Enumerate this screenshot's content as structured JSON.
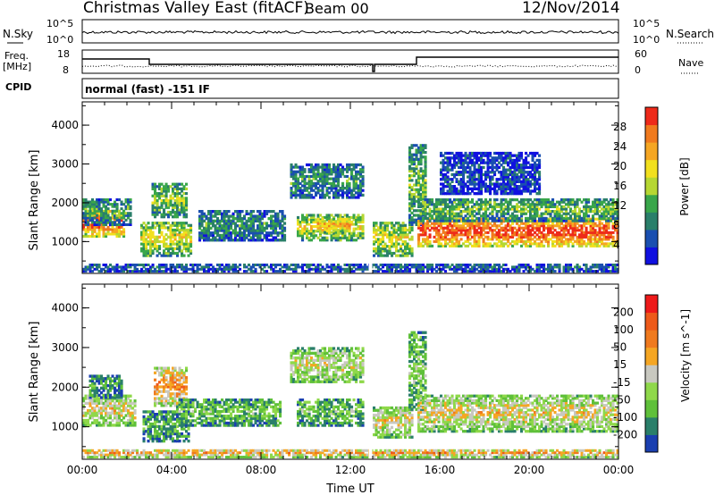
{
  "header": {
    "station": "Christmas Valley East (fitACF)",
    "beam": "Beam 00",
    "date": "12/Nov/2014"
  },
  "top_panels": {
    "nsky_label": "N.Sky",
    "nsky_ticks": [
      "10^5",
      "10^0"
    ],
    "nsearch_label": "N.Search",
    "nsearch_ticks": [
      "10^5",
      "10^0"
    ],
    "freq_label": "Freq.",
    "freq_unit": "[MHz]",
    "freq_ticks": [
      "18",
      "8"
    ],
    "nave_label": "Nave",
    "nave_ticks": [
      "60",
      "0"
    ],
    "cpid_label": "CPID",
    "cpid_text": "normal (fast) -151 IF"
  },
  "chart_data": [
    {
      "type": "heatmap",
      "quantity": "Power",
      "ylabel": "Slant Range [km]",
      "xlabel": "Time UT",
      "xticks": [
        "00:00",
        "04:00",
        "08:00",
        "12:00",
        "16:00",
        "20:00",
        "00:00"
      ],
      "yticks": [
        "1000",
        "2000",
        "3000",
        "4000"
      ],
      "xlim": [
        0,
        24
      ],
      "ylim": [
        180,
        4600
      ],
      "colorbar": {
        "label": "Power [dB]",
        "ticks": [
          "28",
          "24",
          "20",
          "16",
          "12",
          "8",
          "4"
        ],
        "range": [
          0,
          32
        ],
        "colors": [
          "#1010e0",
          "#1a4fb0",
          "#2a7f6a",
          "#39a64a",
          "#b6d732",
          "#f2e01e",
          "#f5a623",
          "#f07a1e",
          "#ee2a1a"
        ]
      },
      "blobs": [
        {
          "t0": 0.0,
          "t1": 1.9,
          "r0": 1100,
          "r1": 1800,
          "level": 0.85
        },
        {
          "t0": 0.0,
          "t1": 2.2,
          "r0": 1400,
          "r1": 2100,
          "level": 0.35
        },
        {
          "t0": 2.6,
          "t1": 4.9,
          "r0": 600,
          "r1": 1500,
          "level": 0.55
        },
        {
          "t0": 3.1,
          "t1": 4.7,
          "r0": 1600,
          "r1": 2500,
          "level": 0.45
        },
        {
          "t0": 5.2,
          "t1": 9.1,
          "r0": 1000,
          "r1": 1800,
          "level": 0.3
        },
        {
          "t0": 9.3,
          "t1": 12.6,
          "r0": 2100,
          "r1": 3000,
          "level": 0.3
        },
        {
          "t0": 9.6,
          "t1": 12.6,
          "r0": 1000,
          "r1": 1700,
          "level": 0.55
        },
        {
          "t0": 10.5,
          "t1": 12.0,
          "r0": 1200,
          "r1": 1600,
          "level": 0.7
        },
        {
          "t0": 13.0,
          "t1": 14.8,
          "r0": 600,
          "r1": 1500,
          "level": 0.55
        },
        {
          "t0": 14.6,
          "t1": 15.4,
          "r0": 1400,
          "r1": 3500,
          "level": 0.4
        },
        {
          "t0": 15.0,
          "t1": 24.0,
          "r0": 850,
          "r1": 1600,
          "level": 0.9
        },
        {
          "t0": 15.0,
          "t1": 24.0,
          "r0": 1500,
          "r1": 2100,
          "level": 0.4
        },
        {
          "t0": 16.0,
          "t1": 20.5,
          "r0": 2200,
          "r1": 3300,
          "level": 0.15
        },
        {
          "t0": 0.0,
          "t1": 24.0,
          "r0": 200,
          "r1": 420,
          "level": 0.2
        }
      ]
    },
    {
      "type": "heatmap",
      "quantity": "Velocity",
      "ylabel": "Slant Range [km]",
      "xlabel": "Time UT",
      "xticks": [
        "00:00",
        "04:00",
        "08:00",
        "12:00",
        "16:00",
        "20:00",
        "00:00"
      ],
      "yticks": [
        "1000",
        "2000",
        "3000",
        "4000"
      ],
      "xlim": [
        0,
        24
      ],
      "ylim": [
        180,
        4600
      ],
      "colorbar": {
        "label": "Velocity [m s^-1]",
        "ticks": [
          "200",
          "100",
          "50",
          "15",
          "-15",
          "-50",
          "-100",
          "-200"
        ],
        "colors": [
          "#1a3fb0",
          "#2a7f6a",
          "#5fc03a",
          "#8fd84a",
          "#c8c8c0",
          "#f5a623",
          "#f07a1e",
          "#ee5a1a",
          "#ee1a1a"
        ]
      },
      "blobs": [
        {
          "t0": 0.0,
          "t1": 2.4,
          "r0": 1000,
          "r1": 1800,
          "level": 0.5
        },
        {
          "t0": 0.3,
          "t1": 1.8,
          "r0": 1700,
          "r1": 2300,
          "level": 0.2
        },
        {
          "t0": 2.7,
          "t1": 4.8,
          "r0": 600,
          "r1": 1400,
          "level": 0.25
        },
        {
          "t0": 3.2,
          "t1": 4.7,
          "r0": 1500,
          "r1": 2500,
          "level": 0.65
        },
        {
          "t0": 4.2,
          "t1": 8.9,
          "r0": 1000,
          "r1": 1700,
          "level": 0.3
        },
        {
          "t0": 9.3,
          "t1": 12.6,
          "r0": 2100,
          "r1": 3000,
          "level": 0.45
        },
        {
          "t0": 9.6,
          "t1": 12.6,
          "r0": 1000,
          "r1": 1700,
          "level": 0.3
        },
        {
          "t0": 13.0,
          "t1": 14.8,
          "r0": 700,
          "r1": 1500,
          "level": 0.5
        },
        {
          "t0": 14.6,
          "t1": 15.4,
          "r0": 1400,
          "r1": 3400,
          "level": 0.35
        },
        {
          "t0": 15.0,
          "t1": 24.0,
          "r0": 850,
          "r1": 1800,
          "level": 0.5
        },
        {
          "t0": 0.0,
          "t1": 24.0,
          "r0": 200,
          "r1": 420,
          "level": 0.6
        }
      ]
    }
  ]
}
